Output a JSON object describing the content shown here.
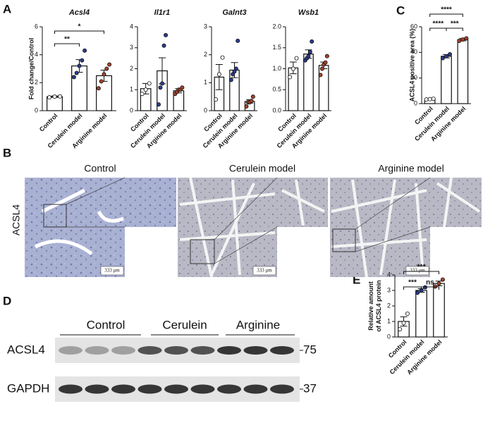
{
  "figure": {
    "panels": [
      "A",
      "B",
      "C",
      "D",
      "E"
    ]
  },
  "chart_data": [
    {
      "type": "bar",
      "title": "Acsl4",
      "y_label": [
        "Fold change/Control"
      ],
      "categories": [
        "Control",
        "Cerulein model",
        "Arginine model"
      ],
      "values": [
        1.0,
        3.2,
        2.5
      ],
      "errors": [
        0.05,
        0.45,
        0.4
      ],
      "points": [
        [
          0.95,
          1.0,
          1.02
        ],
        [
          2.4,
          2.7,
          3.2,
          3.6,
          4.3
        ],
        [
          1.6,
          2.1,
          2.6,
          3.0,
          3.3
        ]
      ],
      "bar_color": "#ffffff",
      "point_colors": [
        "#ffffff",
        "#2a3d8f",
        "#a5432a"
      ],
      "ylim": [
        0,
        6
      ],
      "yticks": [
        0,
        2,
        4,
        6
      ],
      "annotations": [
        "**",
        "*"
      ]
    },
    {
      "type": "bar",
      "title": "Il1r1",
      "categories": [
        "Control",
        "Cerulein model",
        "Arginine model"
      ],
      "values": [
        1.05,
        1.9,
        0.95
      ],
      "errors": [
        0.25,
        0.62,
        0.1
      ],
      "points": [
        [
          0.8,
          1.0,
          1.3
        ],
        [
          0.3,
          1.1,
          1.3,
          3.1,
          3.6
        ],
        [
          0.8,
          0.9,
          1.0,
          1.0,
          1.1
        ]
      ],
      "bar_color": "#ffffff",
      "point_colors": [
        "#ffffff",
        "#2a3d8f",
        "#a5432a"
      ],
      "ylim": [
        0,
        4
      ],
      "yticks": [
        0,
        1,
        2,
        3,
        4
      ],
      "annotations": []
    },
    {
      "type": "bar",
      "title": "Galnt3",
      "categories": [
        "Control",
        "Cerulein model",
        "Arginine model"
      ],
      "values": [
        1.2,
        1.45,
        0.33
      ],
      "errors": [
        0.45,
        0.27,
        0.06
      ],
      "points": [
        [
          0.4,
          1.3,
          1.9
        ],
        [
          1.1,
          1.3,
          1.4,
          1.5,
          2.5
        ],
        [
          0.15,
          0.3,
          0.3,
          0.35,
          0.5
        ]
      ],
      "bar_color": "#ffffff",
      "point_colors": [
        "#ffffff",
        "#2a3d8f",
        "#a5432a"
      ],
      "ylim": [
        0,
        3
      ],
      "yticks": [
        0,
        1,
        2,
        3
      ],
      "annotations": []
    },
    {
      "type": "bar",
      "title": "Wsb1",
      "categories": [
        "Control",
        "Cerulein model",
        "Arginine model"
      ],
      "values": [
        1.02,
        1.35,
        1.08
      ],
      "errors": [
        0.14,
        0.1,
        0.08
      ],
      "points": [
        [
          0.8,
          1.0,
          1.25
        ],
        [
          1.2,
          1.25,
          1.3,
          1.4,
          1.65
        ],
        [
          0.85,
          1.0,
          1.1,
          1.15,
          1.3
        ]
      ],
      "bar_color": "#ffffff",
      "point_colors": [
        "#ffffff",
        "#2a3d8f",
        "#a5432a"
      ],
      "ylim": [
        0,
        2
      ],
      "yticks": [
        {
          "value": 0,
          "label": "0.0"
        },
        {
          "value": 0.5,
          "label": "0.5"
        },
        {
          "value": 1,
          "label": "1.0"
        },
        {
          "value": 1.5,
          "label": "1.5"
        },
        {
          "value": 2,
          "label": "2.0"
        }
      ],
      "annotations": []
    },
    {
      "type": "bar",
      "y_label": [
        "ACSL4 positive area (%)"
      ],
      "categories": [
        "Control",
        "Cerulein model",
        "Arginine model"
      ],
      "values": [
        3.5,
        37,
        50
      ],
      "errors": [
        0.3,
        1.3,
        1.0
      ],
      "points": [
        [
          3.2,
          3.5,
          3.8
        ],
        [
          35.5,
          37,
          38.5
        ],
        [
          49,
          50,
          51
        ]
      ],
      "bar_color": "#ffffff",
      "point_colors": [
        "#ffffff",
        "#2a3d8f",
        "#a5432a"
      ],
      "ylim": [
        0,
        60
      ],
      "yticks": [
        0,
        20,
        40,
        60
      ],
      "annotations": [
        "****",
        "****",
        "***"
      ]
    },
    {
      "type": "bar",
      "y_label": [
        "Relative amount",
        "of ACSL4 protein"
      ],
      "categories": [
        "Control",
        "Cerulein model",
        "Arginine model"
      ],
      "values": [
        1.0,
        3.0,
        3.45
      ],
      "errors": [
        0.3,
        0.12,
        0.15
      ],
      "points": [
        [
          0.5,
          0.9,
          1.5
        ],
        [
          2.85,
          3.0,
          3.2
        ],
        [
          3.25,
          3.45,
          3.7
        ]
      ],
      "bar_color": "#ffffff",
      "point_colors": [
        "#ffffff",
        "#2a3d8f",
        "#a5432a"
      ],
      "ylim": [
        0,
        4
      ],
      "yticks": [
        0,
        1,
        2,
        3,
        4
      ],
      "annotations": [
        "***",
        "***",
        "ns"
      ]
    }
  ],
  "histology": {
    "stain": "ACSL4",
    "groups": [
      "Control",
      "Cerulein model",
      "Arginine model"
    ],
    "scale_bar": "333 μm"
  },
  "blot": {
    "groups": [
      "Control",
      "Cerulein",
      "Arginine"
    ],
    "proteins": [
      {
        "name": "ACSL4",
        "marker": "75"
      },
      {
        "name": "GAPDH",
        "marker": "37"
      }
    ]
  }
}
